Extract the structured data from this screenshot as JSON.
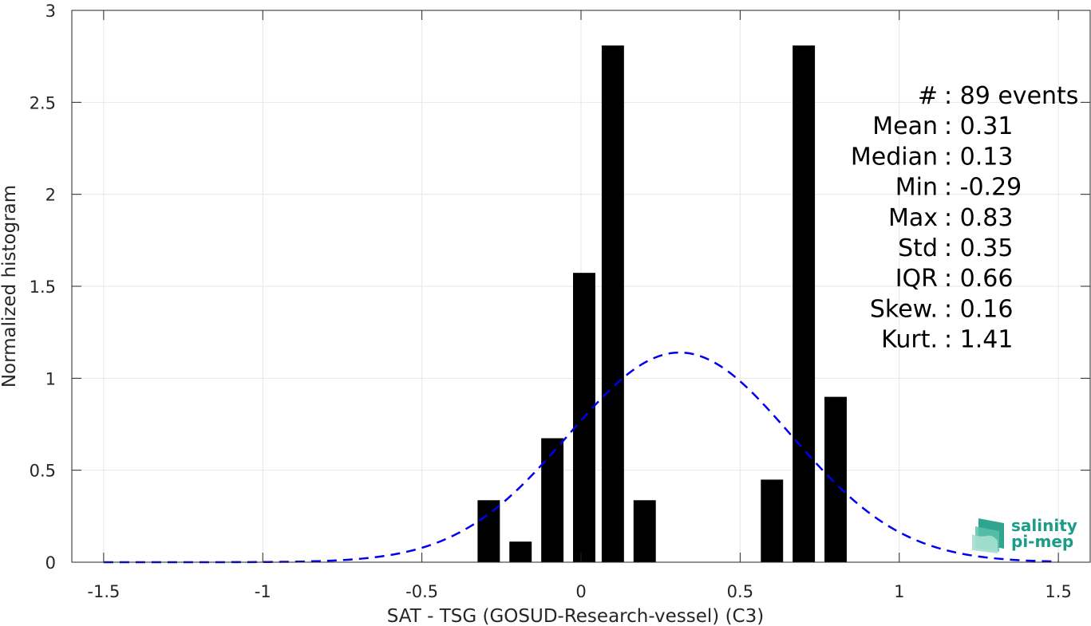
{
  "chart_data": {
    "type": "bar",
    "xlabel": "SAT - TSG (GOSUD-Research-vessel) (C3)",
    "ylabel": "Normalized histogram",
    "xlim": [
      -1.6,
      1.6
    ],
    "ylim": [
      0,
      3
    ],
    "xticks": [
      -1.5,
      -1,
      -0.5,
      0,
      0.5,
      1,
      1.5
    ],
    "xtick_labels": [
      "-1.5",
      "-1",
      "-0.5",
      "0",
      "0.5",
      "1",
      "1.5"
    ],
    "yticks": [
      0,
      0.5,
      1,
      1.5,
      2,
      2.5,
      3
    ],
    "ytick_labels": [
      "0",
      "0.5",
      "1",
      "1.5",
      "2",
      "2.5",
      "3"
    ],
    "grid": true,
    "bar_width": 0.07,
    "bars": [
      {
        "x": -0.29,
        "value": 0.337
      },
      {
        "x": -0.19,
        "value": 0.112
      },
      {
        "x": -0.09,
        "value": 0.674
      },
      {
        "x": 0.01,
        "value": 1.573
      },
      {
        "x": 0.1,
        "value": 2.809
      },
      {
        "x": 0.2,
        "value": 0.337
      },
      {
        "x": 0.6,
        "value": 0.449
      },
      {
        "x": 0.7,
        "value": 2.809
      },
      {
        "x": 0.8,
        "value": 0.899
      }
    ],
    "bar_color": "#000000",
    "fit_curve": {
      "style": "dashed",
      "color": "#0000ee",
      "mean": 0.31,
      "std": 0.35,
      "x_range": [
        -1.5,
        1.5
      ]
    },
    "stats": [
      {
        "label": "#  : 89 events"
      },
      {
        "label": "Mean : 0.31"
      },
      {
        "label": "Median : 0.13"
      },
      {
        "label": "Min : -0.29"
      },
      {
        "label": "Max : 0.83"
      },
      {
        "label": "Std : 0.35"
      },
      {
        "label": "IQR : 0.66"
      },
      {
        "label": "Skew. : 0.16"
      },
      {
        "label": "Kurt. : 1.41"
      }
    ]
  },
  "logo": {
    "line1": "salinity",
    "line2": "pi-mep"
  }
}
